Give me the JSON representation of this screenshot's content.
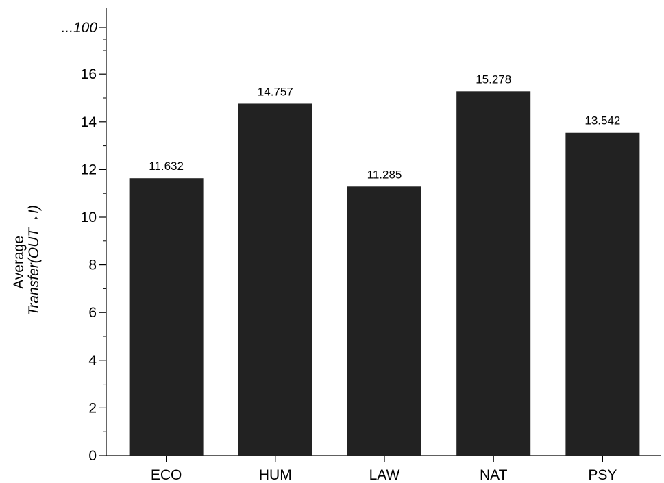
{
  "chart_data": {
    "type": "bar",
    "categories": [
      "ECO",
      "HUM",
      "LAW",
      "NAT",
      "PSY"
    ],
    "values": [
      11.632,
      14.757,
      11.285,
      15.278,
      13.542
    ],
    "data_labels": [
      "11.632",
      "14.757",
      "11.285",
      "15.278",
      "13.542"
    ],
    "ylabel_line1": "Average",
    "ylabel_line2_italic": "Transfer(OUT→I)",
    "yticks": [
      0,
      2,
      4,
      6,
      8,
      10,
      12,
      14,
      16
    ],
    "ytick_labels": [
      "0",
      "2",
      "4",
      "6",
      "8",
      "10",
      "12",
      "14",
      "16"
    ],
    "ylim": [
      0,
      16
    ],
    "axis_break_label": "...100",
    "grid": false,
    "bar_color": "#222222"
  }
}
